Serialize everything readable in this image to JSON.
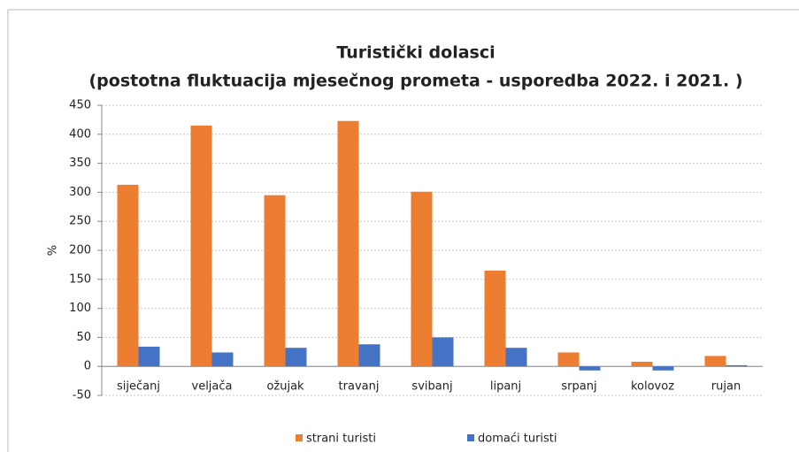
{
  "chart_data": {
    "type": "bar",
    "title": "Turistički dolasci",
    "subtitle": "(postotna fluktuacija mjesečnog prometa - usporedba 2022. i 2021. )",
    "y_label": "%",
    "categories": [
      "siječanj",
      "veljača",
      "ožujak",
      "travanj",
      "svibanj",
      "lipanj",
      "srpanj",
      "kolovoz",
      "rujan"
    ],
    "series": [
      {
        "name": "strani turisti",
        "color": "#ed7d31",
        "values": [
          313,
          415,
          295,
          423,
          301,
          165,
          24,
          8,
          18
        ]
      },
      {
        "name": "domaći turisti",
        "color": "#4472c4",
        "values": [
          34,
          24,
          32,
          38,
          50,
          32,
          -7,
          -7,
          2
        ]
      }
    ],
    "ylim": [
      -50,
      450
    ],
    "yticks": [
      -50,
      0,
      50,
      100,
      150,
      200,
      250,
      300,
      350,
      400,
      450
    ],
    "grid": true,
    "legend": "bottom"
  }
}
